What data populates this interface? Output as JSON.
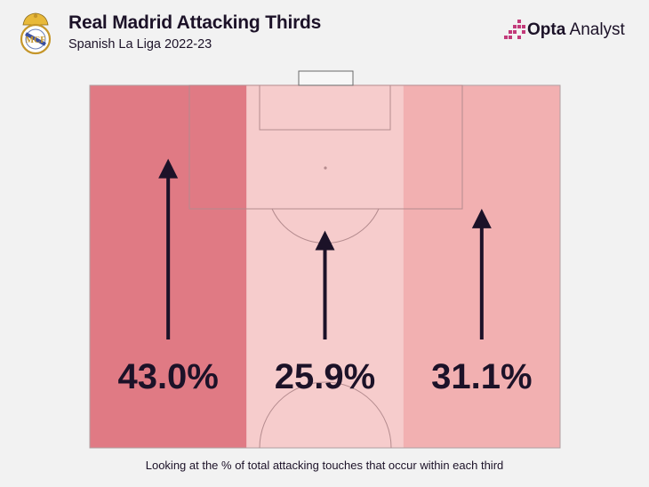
{
  "header": {
    "title": "Real Madrid Attacking Thirds",
    "subtitle": "Spanish La Liga 2022-23",
    "brand_bold": "Opta",
    "brand_light": "Analyst"
  },
  "chart_data": {
    "type": "bar",
    "categories": [
      "Left third",
      "Central third",
      "Right third"
    ],
    "values": [
      43.0,
      25.9,
      31.1
    ],
    "value_labels": [
      "43.0%",
      "25.9%",
      "31.1%"
    ],
    "title": "Real Madrid Attacking Thirds",
    "subtitle": "Spanish La Liga 2022-23",
    "unit": "%",
    "colors": [
      "#e07a84",
      "#f6cccc",
      "#f2b0b1"
    ]
  },
  "footnote": "Looking at the % of total attacking touches that occur within each third"
}
